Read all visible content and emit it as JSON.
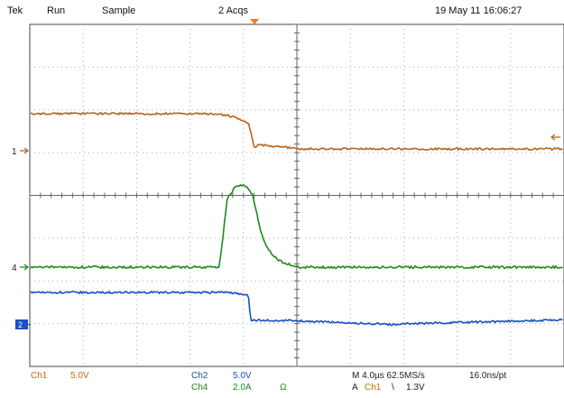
{
  "header": {
    "brand": "Tek",
    "state": "Run",
    "mode": "Sample",
    "acquisitions": "2 Acqs",
    "datetime": "19 May 11 16:06:27"
  },
  "markers": {
    "ch1": "1",
    "ch4": "4",
    "ch2": "2"
  },
  "footer": {
    "ch1_label": "Ch1",
    "ch1_scale": "5.0V",
    "ch2_label": "Ch2",
    "ch2_scale": "5.0V",
    "ch4_label": "Ch4",
    "ch4_scale": "2.0A",
    "ch4_term": "Ω",
    "timebase": "M 4.0µs 62.5MS/s",
    "record": "16.0ns/pt",
    "trigger_prefix": "A",
    "trigger_source": "Ch1",
    "trigger_slope": "\\",
    "trigger_level": "1.3V"
  },
  "colors": {
    "ch1": "#b5651d",
    "ch2": "#1a4fc0",
    "ch4": "#1f8a1f",
    "trigger": "#f07a2a"
  }
}
